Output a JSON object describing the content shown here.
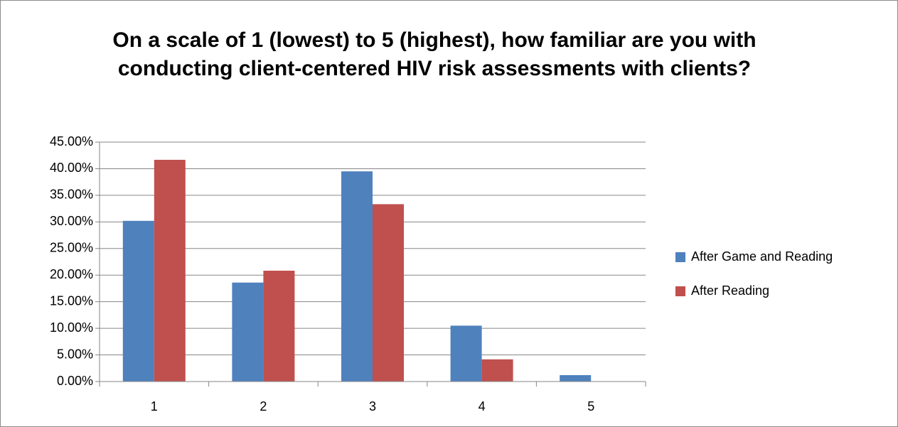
{
  "chart_data": {
    "type": "bar",
    "title": "On a scale of 1 (lowest) to 5 (highest), how familiar are you with conducting client-centered HIV risk assessments with clients?",
    "categories": [
      "1",
      "2",
      "3",
      "4",
      "5"
    ],
    "series": [
      {
        "name": "After Game and Reading",
        "color": "#4f81bd",
        "values": [
          30.2,
          18.6,
          39.5,
          10.5,
          1.2
        ]
      },
      {
        "name": "After Reading",
        "color": "#c0504d",
        "values": [
          41.67,
          20.83,
          33.33,
          4.17,
          0
        ]
      }
    ],
    "ylim": [
      0,
      45
    ],
    "yticks": [
      {
        "value": 0,
        "label": "0.00%"
      },
      {
        "value": 5,
        "label": "5.00%"
      },
      {
        "value": 10,
        "label": "10.00%"
      },
      {
        "value": 15,
        "label": "15.00%"
      },
      {
        "value": 20,
        "label": "20.00%"
      },
      {
        "value": 25,
        "label": "25.00%"
      },
      {
        "value": 30,
        "label": "30.00%"
      },
      {
        "value": 35,
        "label": "35.00%"
      },
      {
        "value": 40,
        "label": "40.00%"
      },
      {
        "value": 45,
        "label": "45.00%"
      }
    ],
    "grid": true,
    "legend": "right"
  }
}
